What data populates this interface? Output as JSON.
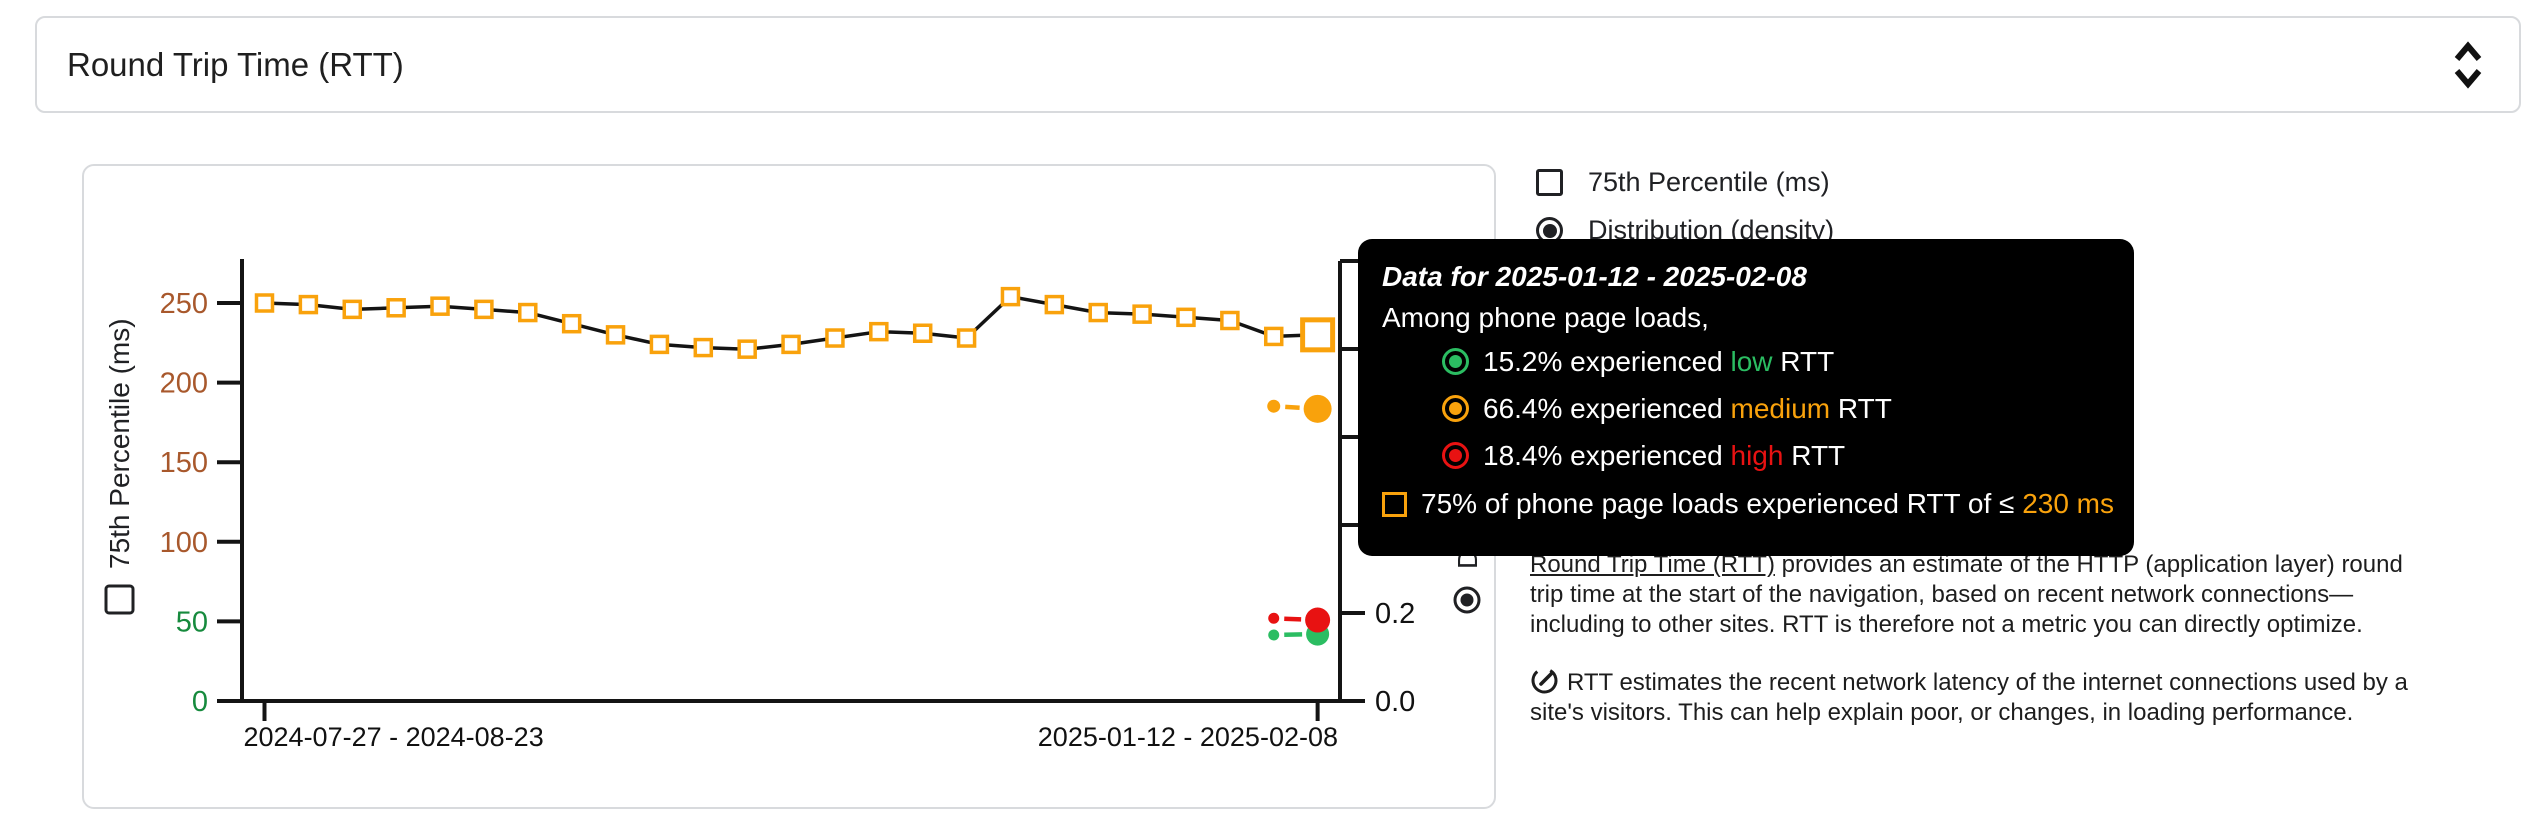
{
  "colors": {
    "orange": "#f9a20c",
    "green": "#2bbd62",
    "red": "#e81212",
    "axis_green": "#168a3d",
    "axis_brown": "#a8582c",
    "axis_black": "#141414",
    "tooltip_bg": "#000000",
    "panel_border": "#d8dadd",
    "text": "#202124"
  },
  "metric_selector": {
    "value": "Round Trip Time (RTT)",
    "icon": "unfold-more-icon"
  },
  "legend": {
    "items": [
      {
        "control": "checkbox",
        "checked": false,
        "label": "75th Percentile (ms)"
      },
      {
        "control": "radio",
        "checked": true,
        "label": "Distribution (density)"
      }
    ]
  },
  "tooltip": {
    "title": "Data for 2025-01-12 - 2025-02-08",
    "subtitle": "Among phone page loads,",
    "rows": [
      {
        "icon": "ring-circle-icon",
        "color": "#2bbd62",
        "prefix": "15.2% experienced ",
        "highlight": "low",
        "suffix": " RTT"
      },
      {
        "icon": "ring-circle-icon",
        "color": "#f9a20c",
        "prefix": "66.4% experienced ",
        "highlight": "medium",
        "suffix": " RTT"
      },
      {
        "icon": "ring-circle-icon",
        "color": "#e81212",
        "prefix": "18.4% experienced ",
        "highlight": "high",
        "suffix": " RTT"
      },
      {
        "icon": "square-outline-icon",
        "color": "#f9a20c",
        "prefix": "75% of phone page loads experienced RTT of ≤ ",
        "highlight": "230 ms",
        "suffix": ""
      }
    ]
  },
  "description": {
    "p1_link": "Round Trip Time (RTT)",
    "p1_rest": " provides an estimate of the HTTP (application layer) round trip time at the start of the navigation, based on recent network connections—including to other sites. RTT is therefore not a metric you can directly optimize.",
    "p2_icon": "gauge-icon",
    "p2": "RTT estimates the recent network latency of the internet connections used by a site's visitors. This can help explain poor, or changes, in loading performance."
  },
  "chart_data": {
    "type": "line",
    "x_axis": {
      "tick_labels": [
        "2024-07-27 - 2024-08-23",
        "2025-01-12 - 2025-02-08"
      ],
      "tick_point_indexes": [
        0,
        24
      ]
    },
    "y_axis_left": {
      "label": "75th Percentile (ms)",
      "control": "checkbox-unchecked",
      "ticks": [
        0,
        50,
        100,
        150,
        200,
        250
      ],
      "tick_colors": [
        "#168a3d",
        "#168a3d",
        "#a8582c",
        "#a8582c",
        "#a8582c",
        "#a8582c"
      ],
      "range": [
        0,
        278
      ]
    },
    "y_axis_right": {
      "label": "Distribution (density)",
      "control": "radio-selected",
      "ticks": [
        0,
        0.2,
        0.4,
        0.6,
        0.8,
        1.0
      ],
      "labeled_ticks": [
        0,
        0.2
      ],
      "range": [
        0,
        1.0
      ]
    },
    "series": [
      {
        "name": "75th Percentile (ms)",
        "marker": "square",
        "marker_color": "#f9a20c",
        "line_color": "#141414",
        "values_ms": [
          250,
          249,
          246,
          247,
          248,
          246,
          244,
          237,
          230,
          224,
          222,
          221,
          224,
          228,
          232,
          231,
          228,
          254,
          249,
          244,
          243,
          241,
          239,
          229,
          230
        ],
        "highlighted_index": 24,
        "highlighted_value_ms": 230
      }
    ],
    "distribution_points": [
      {
        "name": "low",
        "color": "#2bbd62",
        "previous_density": 0.15,
        "density": 0.152
      },
      {
        "name": "medium",
        "color": "#f9a20c",
        "previous_density": 0.67,
        "density": 0.664
      },
      {
        "name": "high",
        "color": "#e81212",
        "previous_density": 0.188,
        "density": 0.184
      }
    ]
  }
}
